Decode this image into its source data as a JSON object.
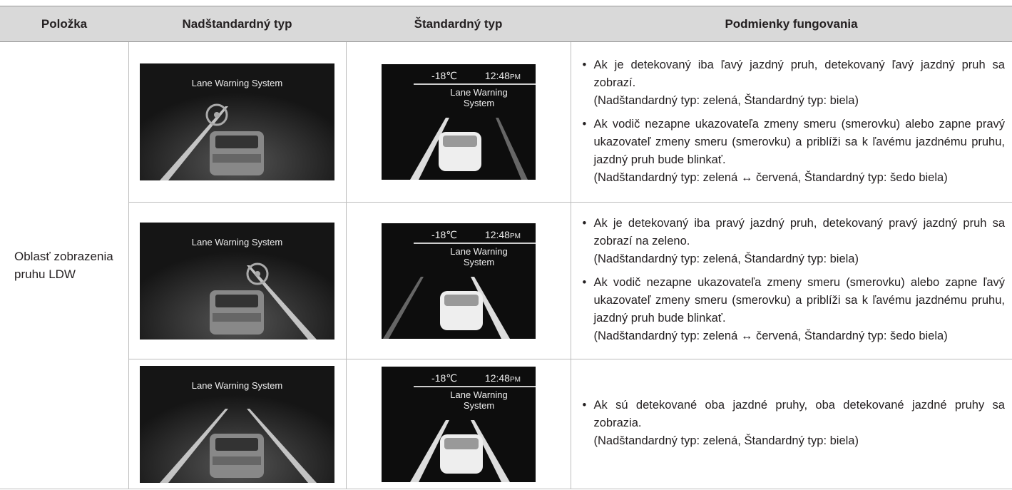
{
  "table": {
    "headers": [
      "Položka",
      "Nadštandardný typ",
      "Štandardný typ",
      "Podmienky fungovania"
    ],
    "item": "Oblasť zobrazenia pruhu LDW",
    "rows": [
      {
        "premium_screen": {
          "title": "Lane Warning System"
        },
        "standard_screen": {
          "temperature": "-18℃",
          "time": "12:48",
          "time_period": "PM",
          "title": "Lane Warning System"
        },
        "conditions": [
          {
            "text": "Ak je detekovaný iba ľavý jazdný pruh, detekovaný ľavý jazdný pruh sa zobrazí.",
            "note": "(Nadštandardný typ: zelená, Štandardný typ: biela)"
          },
          {
            "text": "Ak vodič nezapne ukazovateľa zmeny smeru (smerovku) alebo zapne pravý ukazovateľ zmeny smeru (smerovku) a priblíži sa k ľavému jazdnému pruhu, jazdný pruh bude blinkať.",
            "note": "(Nadštandardný typ: zelená ↔ červená, Štandardný typ: šedo biela)"
          }
        ]
      },
      {
        "premium_screen": {
          "title": "Lane Warning System"
        },
        "standard_screen": {
          "temperature": "-18℃",
          "time": "12:48",
          "time_period": "PM",
          "title": "Lane Warning System"
        },
        "conditions": [
          {
            "text": "Ak je detekovaný iba pravý jazdný pruh, detekovaný pravý jazdný pruh sa zobrazí na zeleno.",
            "note": "(Nadštandardný typ: zelená, Štandardný typ: biela)"
          },
          {
            "text": "Ak vodič nezapne ukazovateľa zmeny smeru (smerovku) alebo zapne ľavý ukazovateľ zmeny smeru (smerovku) a priblíži sa k ľavému jazdnému pruhu, jazdný pruh bude blinkať.",
            "note": "(Nadštandardný typ: zelená ↔ červená, Štandardný typ: šedo biela)"
          }
        ]
      },
      {
        "premium_screen": {
          "title": "Lane Warning System"
        },
        "standard_screen": {
          "temperature": "-18℃",
          "time": "12:48",
          "time_period": "PM",
          "title": "Lane Warning System"
        },
        "conditions": [
          {
            "text": "Ak sú detekované oba jazdné pruhy, oba detekované jazdné pruhy sa zobrazia.",
            "note": "(Nadštandardný typ: zelená, Štandardný typ: biela)"
          }
        ]
      }
    ]
  }
}
